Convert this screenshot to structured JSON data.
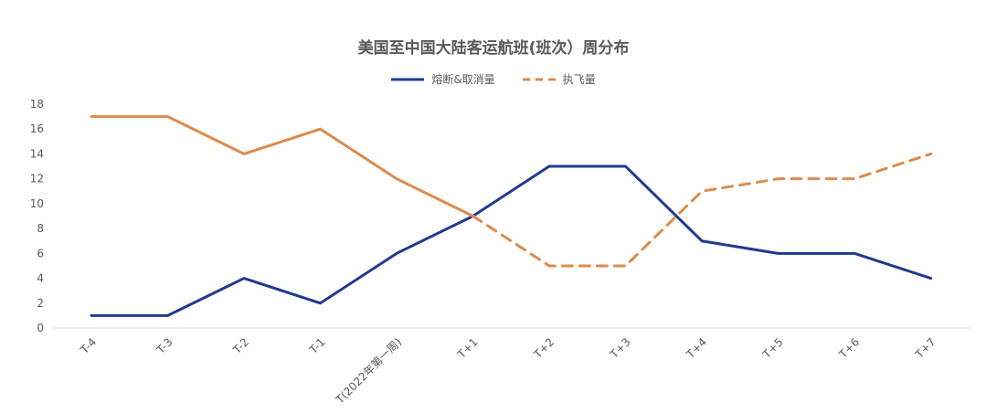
{
  "chart_data": {
    "type": "line",
    "title": "美国至中国大陆客运航班(班次）周分布",
    "xlabel": "",
    "ylabel": "",
    "categories": [
      "T-4",
      "T-3",
      "T-2",
      "T-1",
      "T(2022年第一周)",
      "T+1",
      "T+2",
      "T+3",
      "T+4",
      "T+5",
      "T+6",
      "T+7"
    ],
    "ylim": [
      0,
      18
    ],
    "yticks": [
      0,
      2,
      4,
      6,
      8,
      10,
      12,
      14,
      16,
      18
    ],
    "grid": false,
    "legend_position": "top-center",
    "series": [
      {
        "name": "熔断&取消量",
        "color": "#1f3a8f",
        "style": "solid",
        "values": [
          1,
          1,
          4,
          2,
          6,
          9,
          13,
          13,
          7,
          6,
          6,
          4
        ]
      },
      {
        "name": "执飞量",
        "color": "#dd8a4c",
        "style": "solid-then-dashed",
        "dash_start_index": 5,
        "values": [
          17,
          17,
          14,
          16,
          12,
          9,
          5,
          5,
          11,
          12,
          12,
          14
        ]
      }
    ]
  }
}
